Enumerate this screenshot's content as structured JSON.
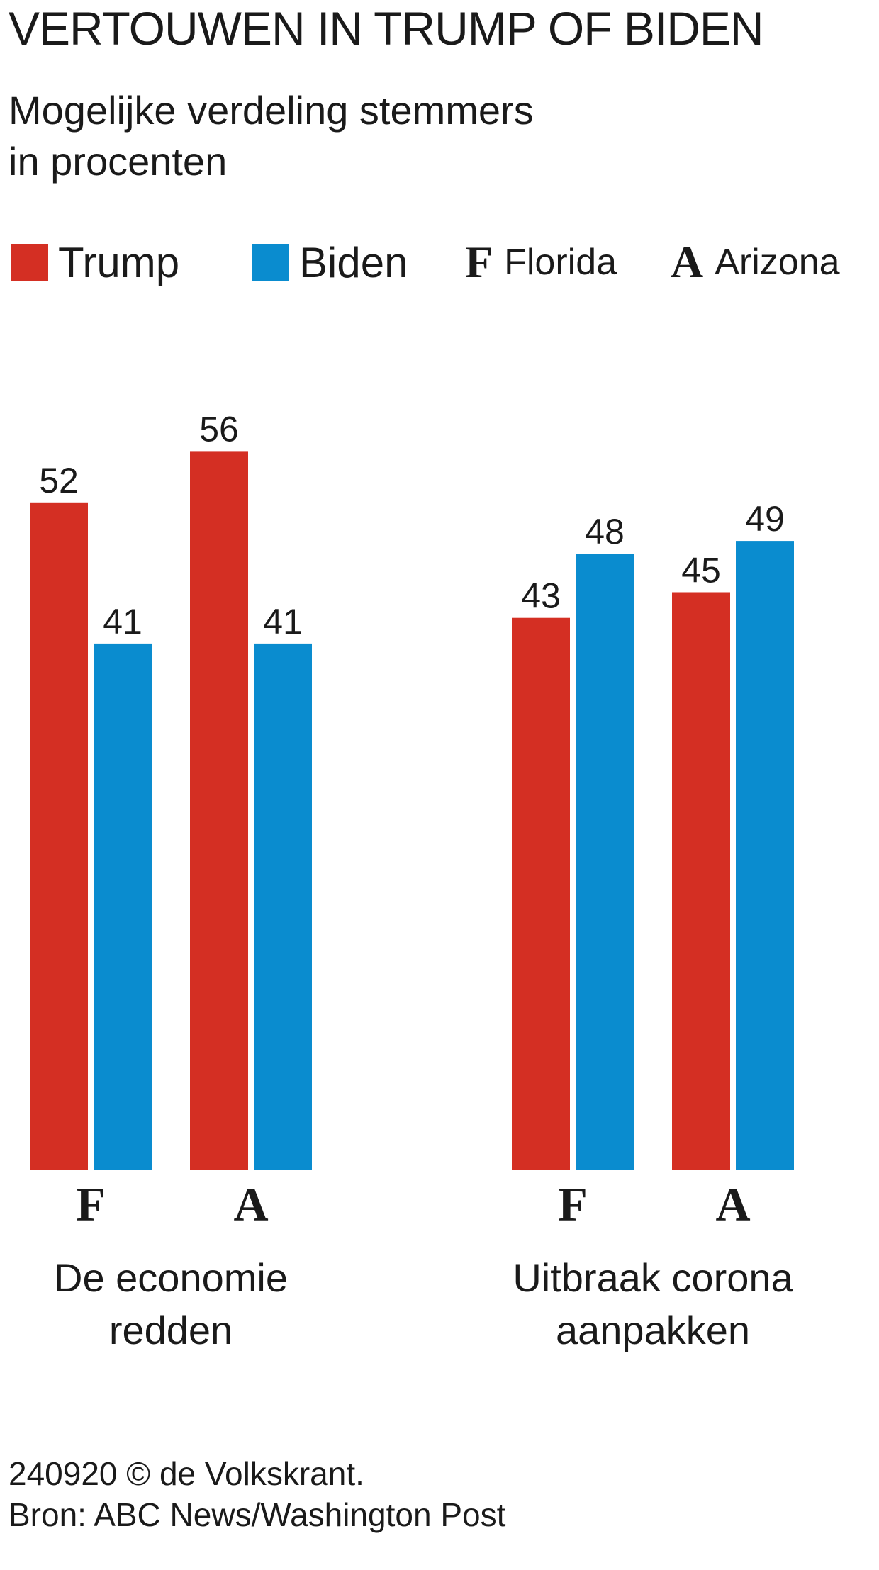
{
  "header": {
    "title": "VERTOUWEN IN TRUMP OF BIDEN",
    "subtitle_line1": "Mogelijke verdeling stemmers",
    "subtitle_line2": "in procenten"
  },
  "legend": {
    "trump": "Trump",
    "biden": "Biden",
    "florida_letter": "F",
    "florida": "Florida",
    "arizona_letter": "A",
    "arizona": "Arizona"
  },
  "colors": {
    "trump": "#d42f23",
    "biden": "#0a8ccf",
    "text": "#1a1a1a"
  },
  "chart_data": {
    "type": "bar",
    "title": "VERTOUWEN IN TRUMP OF BIDEN",
    "subtitle": "Mogelijke verdeling stemmers in procenten",
    "ylim": [
      0,
      60
    ],
    "grid": false,
    "legend_position": "top",
    "groups": [
      {
        "label_line1": "De economie",
        "label_line2": "redden",
        "states": [
          {
            "letter": "F",
            "name": "Florida",
            "trump": 52,
            "biden": 41
          },
          {
            "letter": "A",
            "name": "Arizona",
            "trump": 56,
            "biden": 41
          }
        ]
      },
      {
        "label_line1": "Uitbraak corona",
        "label_line2": "aanpakken",
        "states": [
          {
            "letter": "F",
            "name": "Florida",
            "trump": 43,
            "biden": 48
          },
          {
            "letter": "A",
            "name": "Arizona",
            "trump": 45,
            "biden": 49
          }
        ]
      }
    ],
    "series": [
      {
        "name": "Trump",
        "values": [
          52,
          56,
          43,
          45
        ]
      },
      {
        "name": "Biden",
        "values": [
          41,
          41,
          48,
          49
        ]
      }
    ]
  },
  "footer": {
    "line1": "240920 © de Volkskrant.",
    "line2": "Bron: ABC News/Washington Post"
  }
}
